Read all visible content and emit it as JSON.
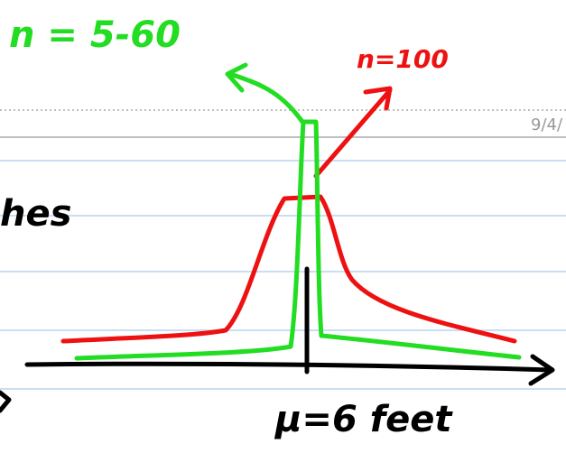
{
  "labels": {
    "green_note": "n = 5-60",
    "red_note": "n=100",
    "date": "9/4/",
    "side_word": "hes",
    "mean_label": "μ=6 feet"
  }
}
